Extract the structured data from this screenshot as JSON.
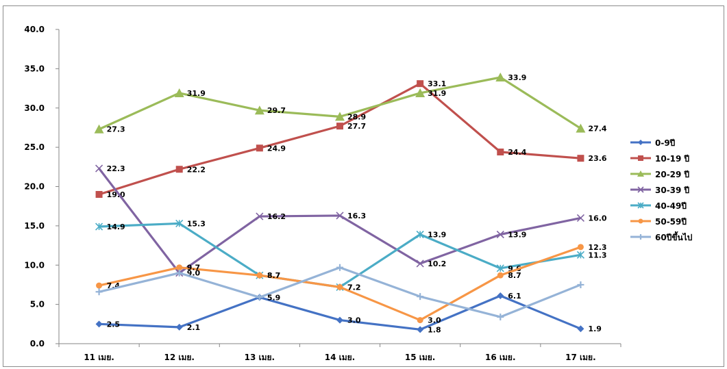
{
  "chart_data": {
    "type": "line",
    "categories": [
      "11 เมย.",
      "12 เมย.",
      "13 เมย.",
      "14 เมย.",
      "15 เมย.",
      "16 เมย.",
      "17 เมย."
    ],
    "ylim": [
      0,
      40
    ],
    "yticks": [
      "0.0",
      "5.0",
      "10.0",
      "15.0",
      "20.0",
      "25.0",
      "30.0",
      "35.0",
      "40.0"
    ],
    "grid": false,
    "legend_position": "right",
    "series": [
      {
        "name": "0-9ปี",
        "color": "#4472c4",
        "marker": "diamond",
        "values": [
          2.5,
          2.1,
          5.9,
          3.0,
          1.8,
          6.1,
          1.9
        ],
        "labels": [
          "2.5",
          "2.1",
          "",
          "3.0",
          "1.8",
          "6.1",
          "1.9"
        ]
      },
      {
        "name": "10-19 ปี",
        "color": "#c0504d",
        "marker": "square",
        "values": [
          19.0,
          22.2,
          24.9,
          27.7,
          33.1,
          24.4,
          23.6
        ],
        "labels": [
          "19.0",
          "22.2",
          "24.9",
          "27.7",
          "33.1",
          "24.4",
          "23.6"
        ]
      },
      {
        "name": "20-29 ปี",
        "color": "#9bbb59",
        "marker": "triangle",
        "values": [
          27.3,
          31.9,
          29.7,
          28.9,
          31.9,
          33.9,
          27.4
        ],
        "labels": [
          "27.3",
          "31.9",
          "29.7",
          "28.9",
          "31.9",
          "33.9",
          "27.4"
        ]
      },
      {
        "name": "30-39 ปี",
        "color": "#8064a2",
        "marker": "x",
        "values": [
          22.3,
          9.0,
          16.2,
          16.3,
          10.2,
          13.9,
          16.0
        ],
        "labels": [
          "22.3",
          "9.0",
          "16.2",
          "16.3",
          "10.2",
          "13.9",
          "16.0"
        ]
      },
      {
        "name": "40-49ปี",
        "color": "#4bacc6",
        "marker": "star",
        "values": [
          14.9,
          15.3,
          8.7,
          7.2,
          13.9,
          9.6,
          11.3
        ],
        "labels": [
          "14.9",
          "15.3",
          "8.7",
          "7.2",
          "13.9",
          "9.6",
          "11.3"
        ]
      },
      {
        "name": "50-59ปี",
        "color": "#f79646",
        "marker": "circle",
        "values": [
          7.4,
          9.7,
          8.7,
          7.2,
          3.0,
          8.7,
          12.3
        ],
        "labels": [
          "7.4",
          "9.7",
          "8.7",
          "7.2",
          "3.0",
          "8.7",
          "12.3"
        ]
      },
      {
        "name": "60ปีขึ้นไป",
        "color": "#95b3d7",
        "marker": "plus",
        "values": [
          6.6,
          9.0,
          5.9,
          9.7,
          6.0,
          3.4,
          7.5
        ],
        "labels": [
          "",
          "",
          "5.9",
          "",
          "",
          "",
          ""
        ]
      }
    ]
  }
}
